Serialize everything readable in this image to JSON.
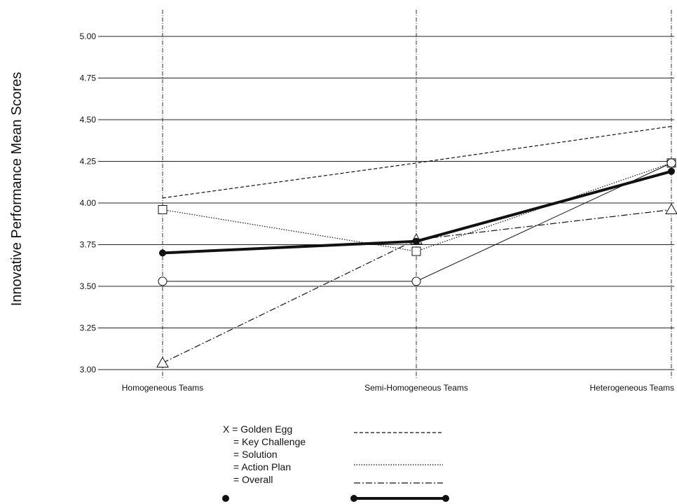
{
  "chart_data": {
    "type": "line",
    "title": "",
    "xlabel": "",
    "ylabel": "Innovative Performance Mean Scores",
    "categories": [
      "Homogeneous Teams",
      "Semi-Homogeneous Teams",
      "Heterogeneous Teams"
    ],
    "ylim": [
      3.0,
      5.0
    ],
    "yticks": [
      "3.00",
      "3.25",
      "3.50",
      "3.75",
      "4.00",
      "4.25",
      "4.50",
      "4.75",
      "5.00"
    ],
    "grid": true,
    "legend_position": "bottom-center",
    "series": [
      {
        "name": "Golden Egg",
        "legend_prefix": "X =",
        "values": [
          4.03,
          4.24,
          4.46
        ],
        "style": "dashed",
        "marker": "none"
      },
      {
        "name": "Key Challenge",
        "legend_prefix": "=",
        "values": [
          3.53,
          3.53,
          4.24
        ],
        "style": "solid-thin",
        "marker": "circle"
      },
      {
        "name": "Solution",
        "legend_prefix": "=",
        "values": [
          3.96,
          3.71,
          4.24
        ],
        "style": "dotted",
        "marker": "square"
      },
      {
        "name": "Action Plan",
        "legend_prefix": "=",
        "values": [
          3.04,
          3.78,
          3.96
        ],
        "style": "dashdot",
        "marker": "triangle"
      },
      {
        "name": "Overall",
        "legend_prefix": "=",
        "values": [
          3.7,
          3.77,
          4.19
        ],
        "style": "solid-thick",
        "marker": "filled-circle"
      }
    ]
  }
}
